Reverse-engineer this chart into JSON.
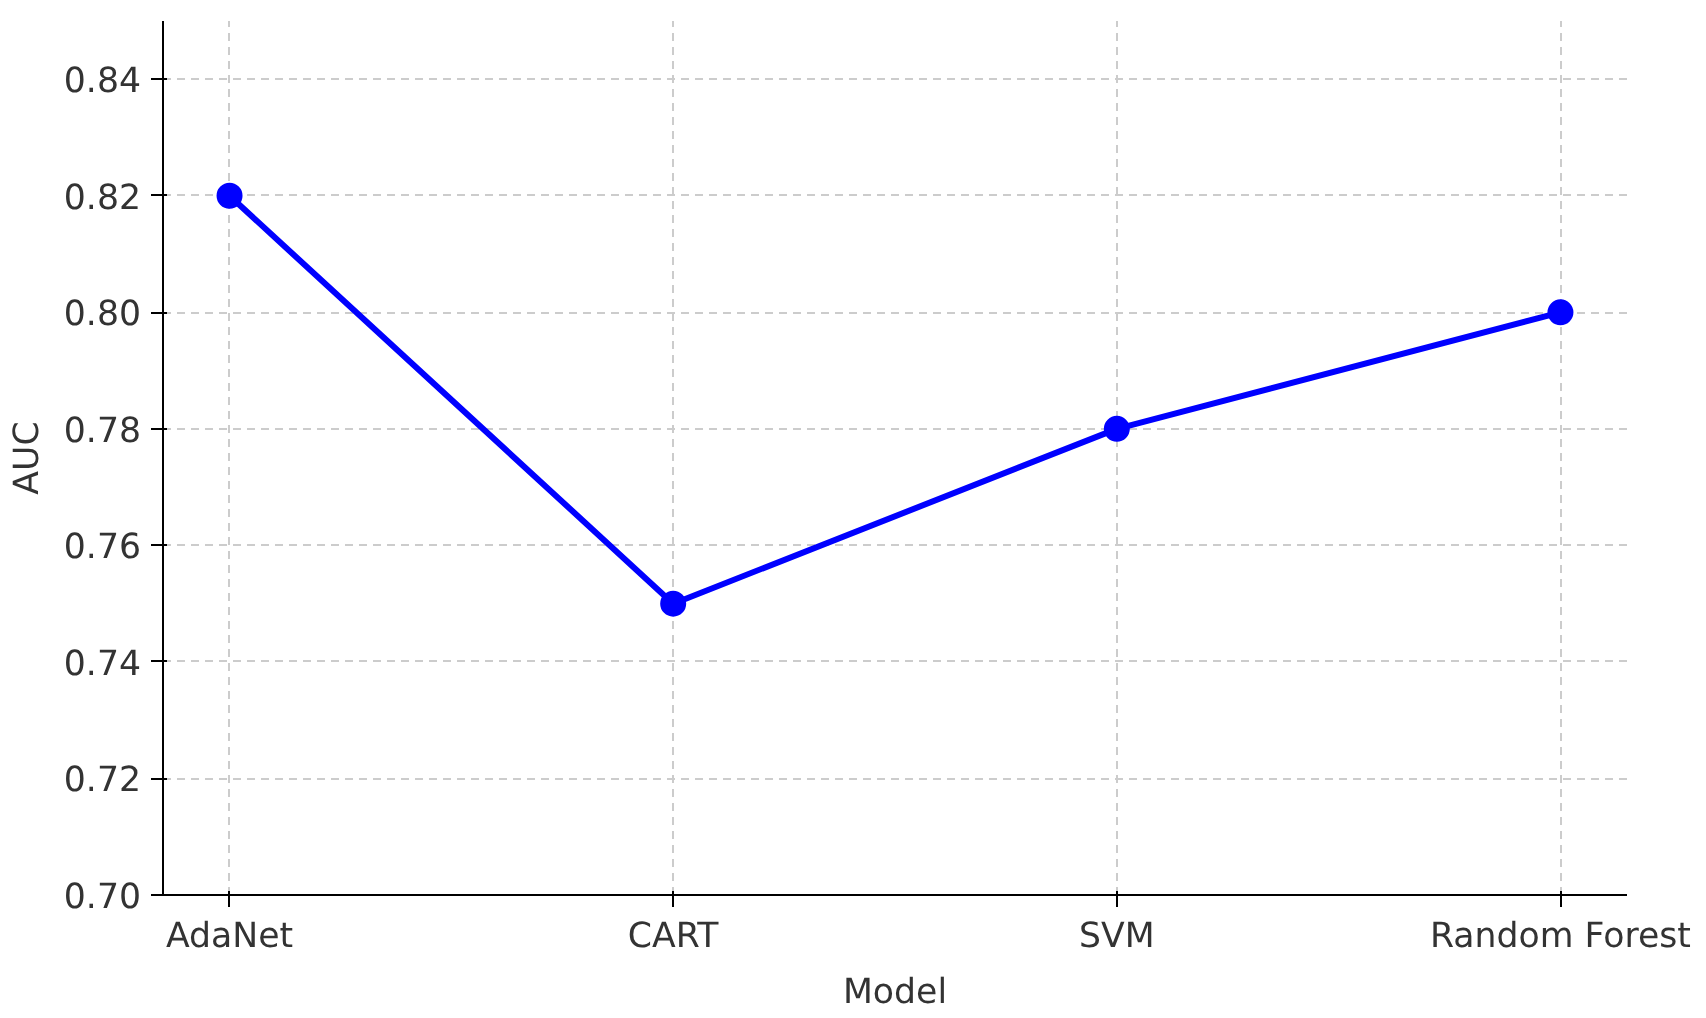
{
  "chart_data": {
    "type": "line",
    "xlabel": "Model",
    "ylabel": "AUC",
    "categories": [
      "AdaNet",
      "CART",
      "SVM",
      "Random Forest"
    ],
    "series": [
      {
        "color": "#0000ff",
        "values": [
          0.82,
          0.75,
          0.78,
          0.8
        ]
      }
    ],
    "ylim": [
      0.7,
      0.85
    ],
    "yticks": [
      {
        "value": 0.7,
        "label": "0.70"
      },
      {
        "value": 0.72,
        "label": "0.72"
      },
      {
        "value": 0.74,
        "label": "0.74"
      },
      {
        "value": 0.76,
        "label": "0.76"
      },
      {
        "value": 0.78,
        "label": "0.78"
      },
      {
        "value": 0.8,
        "label": "0.80"
      },
      {
        "value": 0.82,
        "label": "0.82"
      },
      {
        "value": 0.84,
        "label": "0.84"
      }
    ],
    "grid": true,
    "marker": "circle",
    "line_style": "solid"
  }
}
